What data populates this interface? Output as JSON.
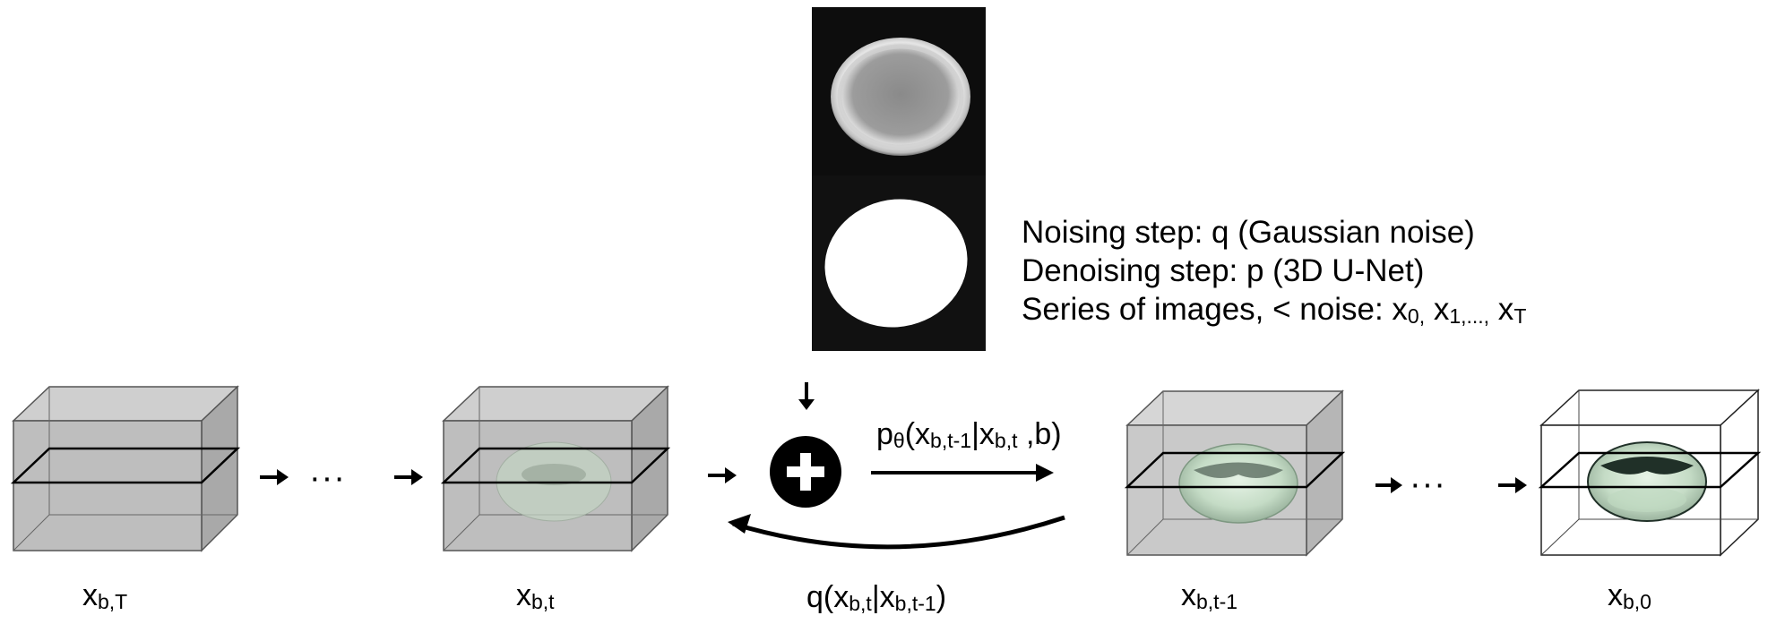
{
  "notes": {
    "line1": "Noising step: q (Gaussian noise)",
    "line2": "Denoising step: p (3D U-Net)",
    "line3_prefix": "Series of images, < noise: x",
    "line3_sub0": "0,",
    "line3_mid1": " x",
    "line3_sub1": "1,...,",
    "line3_mid2": " x",
    "line3_subT": "T"
  },
  "labels": {
    "xbT": {
      "base": "x",
      "sub": "b,T"
    },
    "xbt": {
      "base": "x",
      "sub": "b,t"
    },
    "xbt1": {
      "base": "x",
      "sub": "b,t-1"
    },
    "xb0": {
      "base": "x",
      "sub": "b,0"
    }
  },
  "arrows": {
    "forward": {
      "p": "p",
      "theta_sub": "θ",
      "open": "(x",
      "sub_a": "b,t-1",
      "bar": "|x",
      "sub_b": "b,t",
      "close": " ,b)"
    },
    "backward": {
      "q": "q(x",
      "sub_a": "b,t",
      "bar": "|x",
      "sub_b": "b,t-1",
      "close": ")"
    }
  },
  "ellipsis": "···",
  "colors": {
    "cube_fill": "#b9b9b9",
    "torus_fill": "#cfe3cf",
    "torus_dark": "#203028",
    "plus_circle": "#000000"
  },
  "icons": {
    "operator": "plus-circle-icon",
    "arrow": "arrow-right-icon"
  }
}
